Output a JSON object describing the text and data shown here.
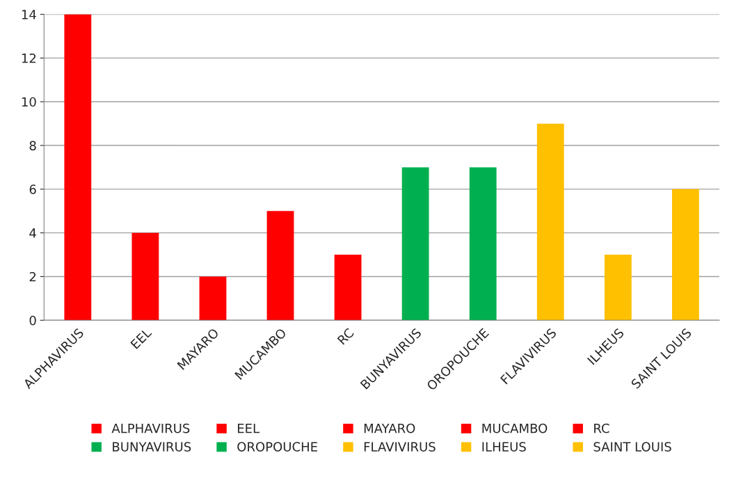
{
  "chart_data": {
    "type": "bar",
    "categories": [
      "ALPHAVIRUS",
      "EEL",
      "MAYARO",
      "MUCAMBO",
      "RC",
      "BUNYAVIRUS",
      "OROPOUCHE",
      "FLAVIVIRUS",
      "ILHEUS",
      "SAINT LOUIS"
    ],
    "series": [
      {
        "name": "ALPHAVIRUS",
        "color": "#ff0000",
        "values": [
          14,
          null,
          null,
          null,
          null,
          null,
          null,
          null,
          null,
          null
        ]
      },
      {
        "name": "EEL",
        "color": "#ff0000",
        "values": [
          null,
          4,
          null,
          null,
          null,
          null,
          null,
          null,
          null,
          null
        ]
      },
      {
        "name": "MAYARO",
        "color": "#ff0000",
        "values": [
          null,
          null,
          2,
          null,
          null,
          null,
          null,
          null,
          null,
          null
        ]
      },
      {
        "name": "MUCAMBO",
        "color": "#ff0000",
        "values": [
          null,
          null,
          null,
          5,
          null,
          null,
          null,
          null,
          null,
          null
        ]
      },
      {
        "name": "RC",
        "color": "#ff0000",
        "values": [
          null,
          null,
          null,
          null,
          3,
          null,
          null,
          null,
          null,
          null
        ]
      },
      {
        "name": "BUNYAVIRUS",
        "color": "#00b050",
        "values": [
          null,
          null,
          null,
          null,
          null,
          7,
          null,
          null,
          null,
          null
        ]
      },
      {
        "name": "OROPOUCHE",
        "color": "#00b050",
        "values": [
          null,
          null,
          null,
          null,
          null,
          null,
          7,
          null,
          null,
          null
        ]
      },
      {
        "name": "FLAVIVIRUS",
        "color": "#ffc000",
        "values": [
          null,
          null,
          null,
          null,
          null,
          null,
          null,
          9,
          null,
          null
        ]
      },
      {
        "name": "ILHEUS",
        "color": "#ffc000",
        "values": [
          null,
          null,
          null,
          null,
          null,
          null,
          null,
          null,
          3,
          null
        ]
      },
      {
        "name": "SAINT LOUIS",
        "color": "#ffc000",
        "values": [
          null,
          null,
          null,
          null,
          null,
          null,
          null,
          null,
          null,
          6
        ]
      }
    ],
    "ylim": [
      0,
      14
    ],
    "yticks": [
      0,
      2,
      4,
      6,
      8,
      10,
      12,
      14
    ],
    "grid": "y",
    "legend": "bottom"
  }
}
